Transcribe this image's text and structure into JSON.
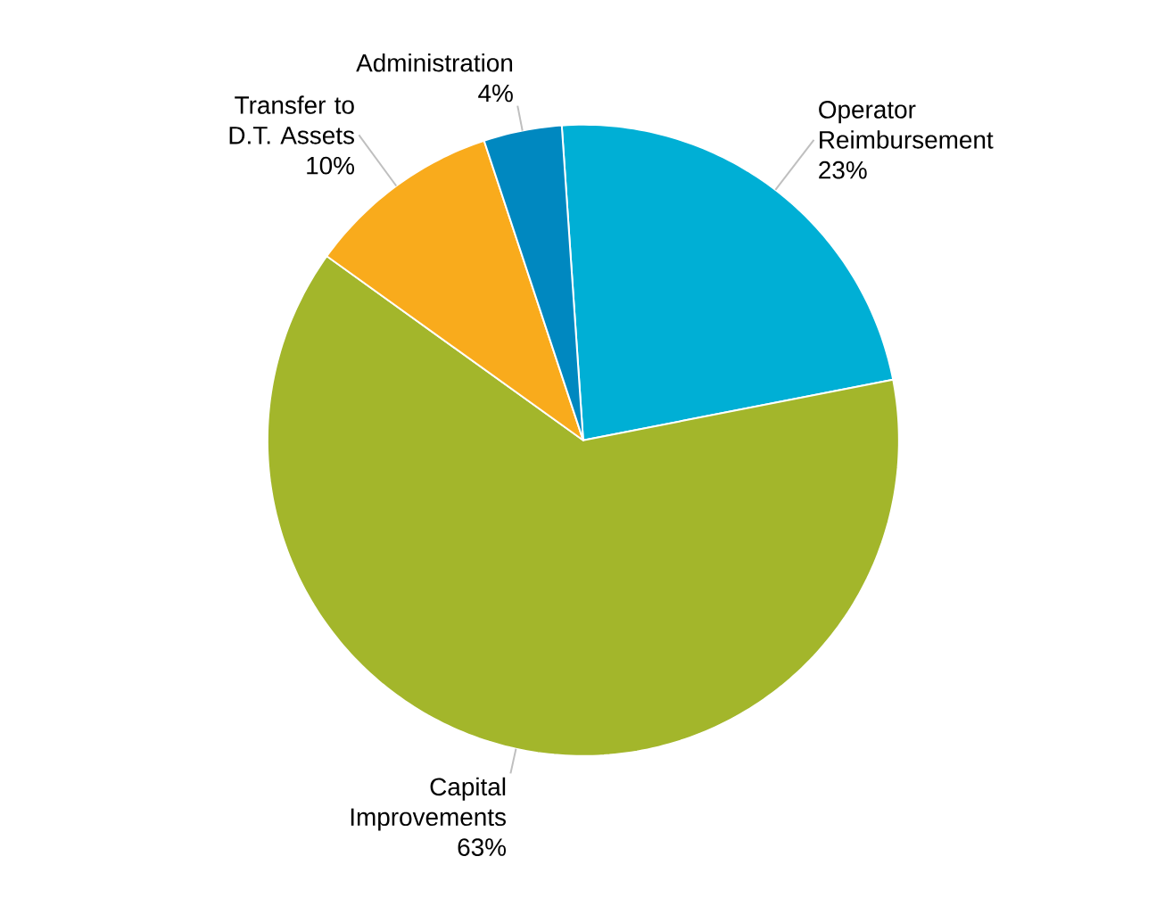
{
  "chart_data": {
    "type": "pie",
    "categories": [
      "Operator Reimbursement",
      "Capital Improvements",
      "Transfer to D.T. Assets",
      "Administration"
    ],
    "values": [
      23,
      63,
      10,
      4
    ],
    "colors": [
      "#00afd5",
      "#a3b62b",
      "#f9ab1c",
      "#0088c0"
    ],
    "value_labels": [
      "23%",
      "63%",
      "10%",
      "4%"
    ]
  }
}
